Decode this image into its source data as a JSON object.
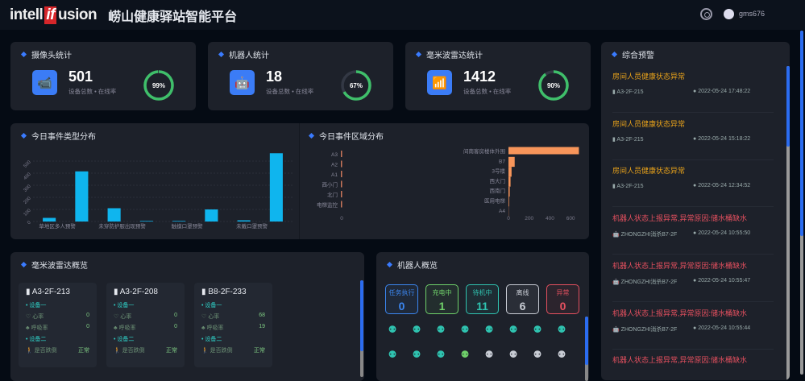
{
  "header": {
    "logo": {
      "pre": "intell",
      "mark": "if",
      "post": "usion"
    },
    "title": "崂山健康驿站智能平台",
    "user": "gms676",
    "icons": [
      "gear-icon",
      "user-avatar-icon"
    ]
  },
  "stats": [
    {
      "title": "摄像头统计",
      "value": "501",
      "sub": "设备总数 • 在线率",
      "percent": 99,
      "percent_label": "99%",
      "icon": "camera-icon"
    },
    {
      "title": "机器人统计",
      "value": "18",
      "sub": "设备总数 • 在线率",
      "percent": 67,
      "percent_label": "67%",
      "icon": "robot-icon"
    },
    {
      "title": "毫米波雷达统计",
      "value": "1412",
      "sub": "设备总数 • 在线率",
      "percent": 90,
      "percent_label": "90%",
      "icon": "wifi-radar-icon"
    }
  ],
  "colors": {
    "accent": "#3b7cf6",
    "ring": "#3fbf6a",
    "bar": "#0fb5ee",
    "region_bar": "#f7955a",
    "warn_orange": "#e8a21a",
    "warn_red": "#e5505f"
  },
  "chart_data": [
    {
      "type": "bar",
      "title": "今日事件类型分布",
      "categories": [
        "草地区多人预警",
        "",
        "未穿防护服出现预警",
        "",
        "触摸口罩预警",
        "",
        "未戴口罩预警",
        ""
      ],
      "values": [
        30,
        415,
        110,
        5,
        5,
        100,
        10,
        565
      ],
      "ylim": [
        0,
        600
      ],
      "yticks": [
        "0",
        "100",
        "200",
        "300",
        "400",
        "500"
      ],
      "grid": true
    },
    {
      "type": "bar",
      "orientation": "horizontal",
      "title": "今日事件区域分布",
      "left": {
        "categories": [
          "A3",
          "A2",
          "A1",
          "西小门",
          "北门",
          "电梯监控"
        ],
        "values": [
          0,
          0,
          0,
          0,
          0,
          0
        ],
        "xticks": [
          "0"
        ]
      },
      "right": {
        "categories": [
          "间南客房楼体外围",
          "B7",
          "3号楼",
          "西大门",
          "西南门",
          "医用电梯",
          "A4"
        ],
        "values": [
          680,
          60,
          30,
          20,
          12,
          6,
          2
        ],
        "xlim": [
          0,
          700
        ],
        "xticks": [
          "0",
          "200",
          "400",
          "600"
        ]
      }
    }
  ],
  "alarms": {
    "title": "综合预警",
    "items": [
      {
        "text": "房间人员健康状态异常",
        "loc": "A3-2F-215",
        "time": "2022-05-24 17:48:22",
        "level": "orange"
      },
      {
        "text": "房间人员健康状态异常",
        "loc": "A3-2F-215",
        "time": "2022-05-24 15:18:22",
        "level": "orange"
      },
      {
        "text": "房间人员健康状态异常",
        "loc": "A3-2F-215",
        "time": "2022-05-24 12:34:52",
        "level": "orange"
      },
      {
        "text": "机器人状态上报异常,异常原因:储水桶缺水",
        "loc": "ZHONGZHI消杀B7-2F",
        "time": "2022-05-24 10:55:50",
        "level": "red"
      },
      {
        "text": "机器人状态上报异常,异常原因:储水桶缺水",
        "loc": "ZHONGZHI消杀B7-2F",
        "time": "2022-05-24 10:55:47",
        "level": "red"
      },
      {
        "text": "机器人状态上报异常,异常原因:储水桶缺水",
        "loc": "ZHONGZHI消杀B7-2F",
        "time": "2022-05-24 10:55:44",
        "level": "red"
      },
      {
        "text": "机器人状态上报异常,异常原因:储水桶缺水",
        "loc": "",
        "time": "",
        "level": "red"
      }
    ]
  },
  "radar": {
    "title": "毫米波雷达概览",
    "cards": [
      {
        "room": "A3-2F-213",
        "dev1": "设备一",
        "hr_label": "心率",
        "hr": "0",
        "rr_label": "呼吸率",
        "rr": "0",
        "dev2": "设备二",
        "fall_label": "是否跌倒",
        "fall": "正常"
      },
      {
        "room": "A3-2F-208",
        "dev1": "设备一",
        "hr_label": "心率",
        "hr": "0",
        "rr_label": "呼吸率",
        "rr": "0",
        "dev2": "设备二",
        "fall_label": "是否跌倒",
        "fall": "正常"
      },
      {
        "room": "B8-2F-233",
        "dev1": "设备一",
        "hr_label": "心率",
        "hr": "68",
        "rr_label": "呼吸率",
        "rr": "19",
        "dev2": "设备二",
        "fall_label": "是否跌倒",
        "fall": "正常"
      }
    ]
  },
  "robots": {
    "title": "机器人概览",
    "status": [
      {
        "label": "任务执行",
        "count": "0",
        "color": "#3b86f0"
      },
      {
        "label": "充电中",
        "count": "1",
        "color": "#6fd16a"
      },
      {
        "label": "待机中",
        "count": "11",
        "color": "#2fc3b0"
      },
      {
        "label": "离线",
        "count": "6",
        "color": "#c8ccd4"
      },
      {
        "label": "异常",
        "count": "0",
        "color": "#e5505f"
      }
    ],
    "icons": [
      "standby",
      "standby",
      "standby",
      "standby",
      "standby",
      "standby",
      "standby",
      "standby",
      "standby",
      "standby",
      "standby",
      "charging",
      "offline",
      "offline",
      "offline",
      "offline"
    ]
  }
}
